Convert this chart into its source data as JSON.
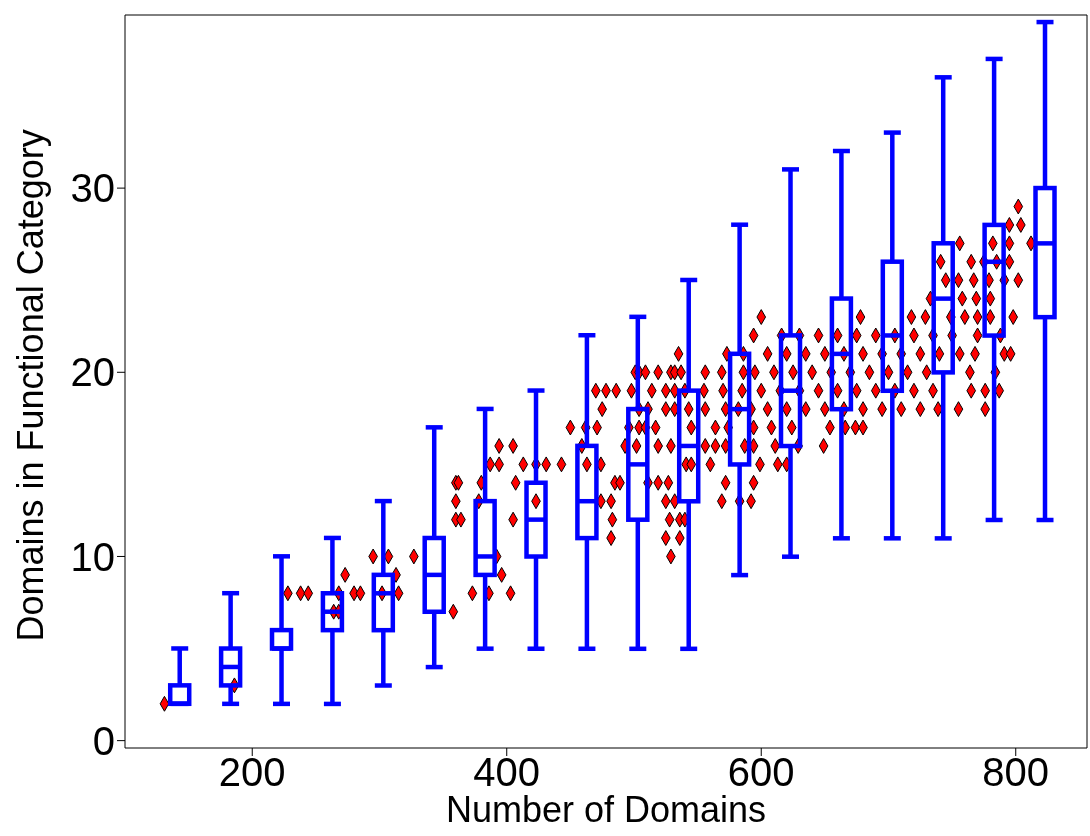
{
  "chart_data": {
    "type": "box",
    "xlabel": "Number of Domains",
    "ylabel": "Domains in Functional Category",
    "xlim": [
      100,
      856
    ],
    "ylim": [
      -0.4,
      39.4
    ],
    "xticks": [
      200,
      400,
      600,
      800
    ],
    "yticks": [
      0,
      10,
      20,
      30
    ],
    "marker": "diamond",
    "series": [
      {
        "type": "scatter",
        "color": "#ff0000",
        "x": [
          131,
          186,
          264,
          268,
          358,
          228,
          238,
          244,
          268,
          280,
          285,
          302,
          315,
          373,
          386,
          403,
          273,
          313,
          396,
          295,
          307,
          327,
          392,
          529,
          482,
          525,
          536,
          360,
          364,
          405,
          483,
          528,
          536,
          540,
          360,
          378,
          423,
          474,
          482,
          525,
          532,
          569,
          583,
          592,
          360,
          362,
          380,
          407,
          485,
          489,
          511,
          519,
          527,
          572,
          594,
          387,
          394,
          413,
          423,
          431,
          443,
          463,
          474,
          541,
          545,
          560,
          599,
          613,
          620,
          394,
          405,
          459,
          493,
          502,
          519,
          529,
          556,
          564,
          572,
          587,
          594,
          611,
          629,
          649,
          450,
          462,
          471,
          496,
          504,
          509,
          517,
          545,
          564,
          574,
          594,
          608,
          624,
          654,
          666,
          674,
          680,
          475,
          504,
          511,
          525,
          532,
          543,
          556,
          572,
          582,
          592,
          605,
          620,
          635,
          650,
          665,
          680,
          695,
          710,
          725,
          739,
          755,
          776,
          470,
          478,
          486,
          498,
          514,
          525,
          532,
          540,
          555,
          570,
          585,
          600,
          615,
          630,
          645,
          660,
          675,
          690,
          705,
          720,
          735,
          765,
          776,
          787,
          501,
          504,
          509,
          519,
          529,
          532,
          537,
          556,
          569,
          586,
          595,
          610,
          625,
          640,
          655,
          670,
          685,
          700,
          715,
          730,
          764,
          784,
          535,
          573,
          586,
          605,
          620,
          635,
          650,
          665,
          680,
          695,
          710,
          725,
          740,
          756,
          768,
          791,
          796,
          594,
          616,
          630,
          645,
          660,
          675,
          690,
          705,
          720,
          735,
          750,
          770,
          788,
          600,
          678,
          718,
          729,
          749,
          760,
          770,
          780,
          798,
          733,
          758,
          769,
          780,
          745,
          755,
          767,
          779,
          791,
          802,
          741,
          765,
          775,
          785,
          795,
          756,
          782,
          795,
          812,
          795,
          804,
          802
        ],
        "values": [
          2,
          3,
          7,
          7,
          7,
          8,
          8,
          8,
          8,
          8,
          8,
          8,
          8,
          8,
          8,
          8,
          9,
          9,
          9,
          10,
          10,
          10,
          10,
          10,
          11,
          11,
          11,
          12,
          12,
          12,
          12,
          12,
          12,
          12,
          13,
          13,
          13,
          13,
          13,
          13,
          13,
          13,
          13,
          13,
          14,
          14,
          14,
          14,
          14,
          14,
          14,
          14,
          14,
          14,
          14,
          15,
          15,
          15,
          15,
          15,
          15,
          15,
          15,
          15,
          15,
          15,
          15,
          15,
          15,
          16,
          16,
          16,
          16,
          16,
          16,
          16,
          16,
          16,
          16,
          16,
          16,
          16,
          16,
          16,
          17,
          17,
          17,
          17,
          17,
          17,
          17,
          17,
          17,
          17,
          17,
          17,
          17,
          17,
          17,
          17,
          17,
          18,
          18,
          18,
          18,
          18,
          18,
          18,
          18,
          18,
          18,
          18,
          18,
          18,
          18,
          18,
          18,
          18,
          18,
          18,
          18,
          18,
          18,
          19,
          19,
          19,
          19,
          19,
          19,
          19,
          19,
          19,
          19,
          19,
          19,
          19,
          19,
          19,
          19,
          19,
          19,
          19,
          19,
          19,
          19,
          19,
          19,
          20,
          20,
          20,
          20,
          20,
          20,
          20,
          20,
          20,
          20,
          20,
          20,
          20,
          20,
          20,
          20,
          20,
          20,
          20,
          20,
          20,
          20,
          21,
          21,
          21,
          21,
          21,
          21,
          21,
          21,
          21,
          21,
          21,
          21,
          21,
          21,
          21,
          21,
          21,
          22,
          22,
          22,
          22,
          22,
          22,
          22,
          22,
          22,
          22,
          22,
          22,
          22,
          23,
          23,
          23,
          23,
          23,
          23,
          23,
          23,
          23,
          24,
          24,
          24,
          24,
          25,
          25,
          25,
          25,
          25,
          25,
          26,
          26,
          26,
          26,
          26,
          27,
          27,
          27,
          27,
          28,
          28,
          29
        ]
      },
      {
        "type": "box",
        "color": "#0000ff",
        "x": [
          143,
          183,
          223,
          263,
          303,
          343,
          383,
          423,
          463,
          503,
          543,
          583,
          623,
          663,
          703,
          743,
          783,
          823
        ],
        "boxes": [
          {
            "low": 2,
            "q1": 2,
            "median": 2,
            "q3": 3,
            "high": 5
          },
          {
            "low": 2,
            "q1": 3,
            "median": 4,
            "q3": 5,
            "high": 8
          },
          {
            "low": 2,
            "q1": 5,
            "median": 5,
            "q3": 6,
            "high": 10
          },
          {
            "low": 2,
            "q1": 6,
            "median": 7,
            "q3": 8,
            "high": 11
          },
          {
            "low": 3,
            "q1": 6,
            "median": 8,
            "q3": 9,
            "high": 13
          },
          {
            "low": 4,
            "q1": 7,
            "median": 9,
            "q3": 11,
            "high": 17
          },
          {
            "low": 5,
            "q1": 9,
            "median": 10,
            "q3": 13,
            "high": 18
          },
          {
            "low": 5,
            "q1": 10,
            "median": 12,
            "q3": 14,
            "high": 19
          },
          {
            "low": 5,
            "q1": 11,
            "median": 13,
            "q3": 16,
            "high": 22
          },
          {
            "low": 5,
            "q1": 12,
            "median": 15,
            "q3": 18,
            "high": 23
          },
          {
            "low": 5,
            "q1": 13,
            "median": 16,
            "q3": 19,
            "high": 25
          },
          {
            "low": 9,
            "q1": 15,
            "median": 18,
            "q3": 21,
            "high": 28
          },
          {
            "low": 10,
            "q1": 16,
            "median": 19,
            "q3": 22,
            "high": 31
          },
          {
            "low": 11,
            "q1": 18,
            "median": 21,
            "q3": 24,
            "high": 32
          },
          {
            "low": 11,
            "q1": 19,
            "median": 22,
            "q3": 26,
            "high": 33
          },
          {
            "low": 11,
            "q1": 20,
            "median": 24,
            "q3": 27,
            "high": 36
          },
          {
            "low": 12,
            "q1": 22,
            "median": 26,
            "q3": 28,
            "high": 37
          },
          {
            "low": 12,
            "q1": 23,
            "median": 27,
            "q3": 30,
            "high": 39
          }
        ]
      }
    ]
  }
}
